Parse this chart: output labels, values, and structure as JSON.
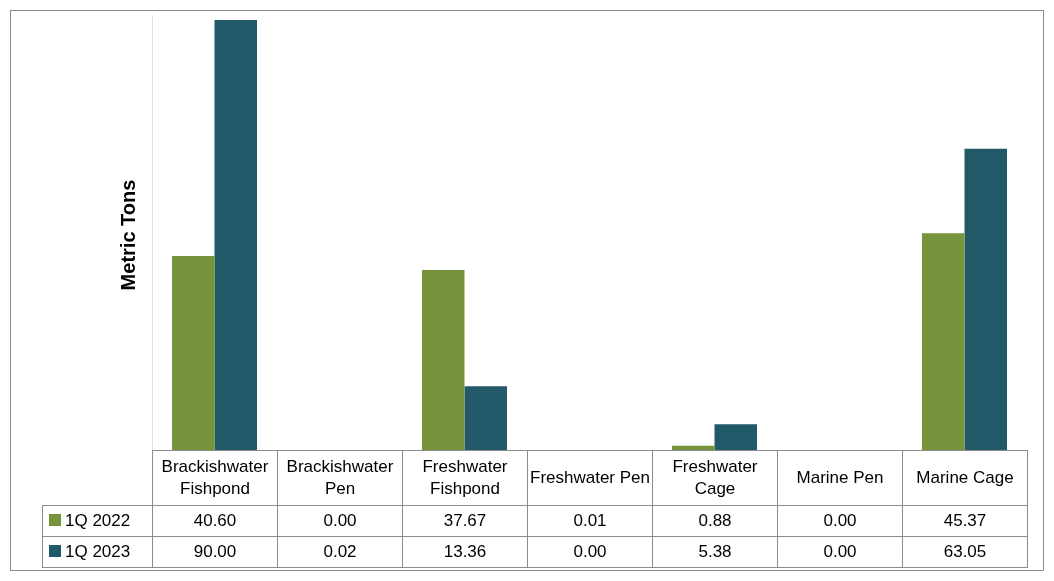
{
  "chart_data": {
    "type": "bar",
    "ylabel": "Metric Tons",
    "categories": [
      "Brackishwater Fishpond",
      "Brackishwater Pen",
      "Freshwater Fishpond",
      "Freshwater Pen",
      "Freshwater Cage",
      "Marine Pen",
      "Marine Cage"
    ],
    "series": [
      {
        "name": "1Q 2022",
        "color": "#77933c",
        "values": [
          40.6,
          0,
          37.67,
          0.01,
          0.88,
          0,
          45.37
        ],
        "value_labels": [
          "40.60",
          "0.00",
          "37.67",
          "0.01",
          "0.88",
          "0.00",
          "45.37"
        ]
      },
      {
        "name": "1Q 2023",
        "color": "#215968",
        "values": [
          90,
          0.02,
          13.36,
          0,
          5.38,
          0,
          63.05
        ],
        "value_labels": [
          "90.00",
          "0.02",
          "13.36",
          "0.00",
          "5.38",
          "0.00",
          "63.05"
        ]
      }
    ],
    "legend": "bottom"
  }
}
